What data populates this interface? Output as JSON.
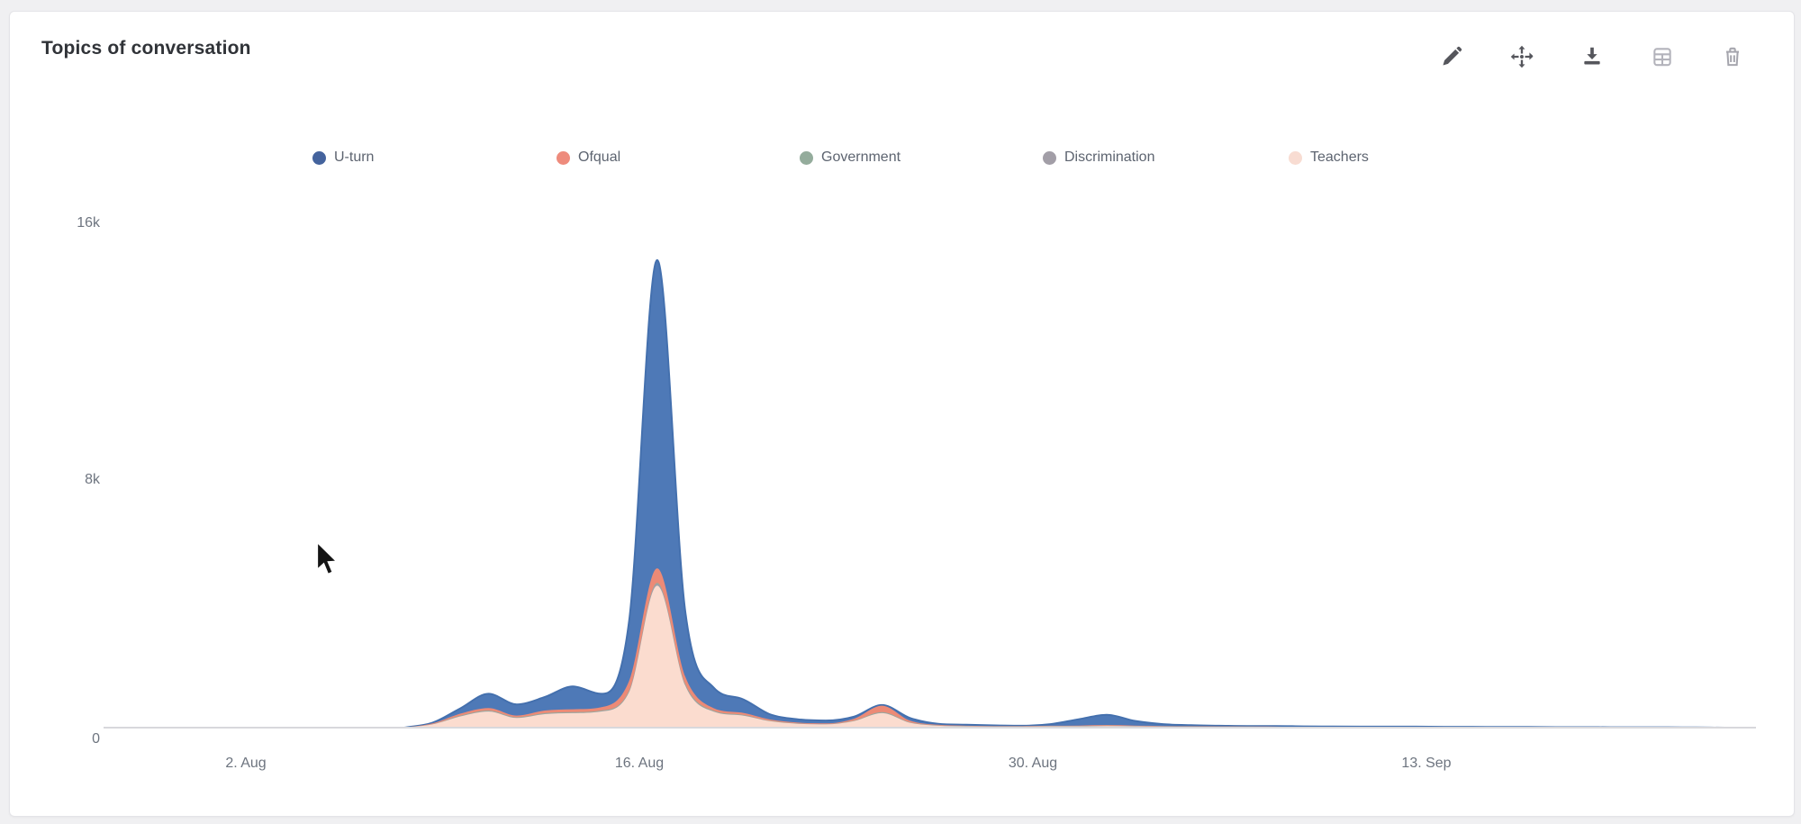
{
  "card": {
    "title": "Topics of conversation"
  },
  "toolbar": {
    "icons": [
      "edit",
      "move",
      "download",
      "data-table",
      "delete"
    ]
  },
  "chart_data": {
    "type": "area",
    "stacked": true,
    "title": "Topics of conversation",
    "grid": false,
    "legend_position": "top",
    "ylim": [
      0,
      16000
    ],
    "y_ticks": [
      "16k",
      "8k",
      "0"
    ],
    "x_ticks": [
      "2. Aug",
      "16. Aug",
      "30. Aug",
      "13. Sep"
    ],
    "x": [
      "8 Aug",
      "9 Aug",
      "10 Aug",
      "11 Aug",
      "12 Aug",
      "13 Aug",
      "14 Aug",
      "15 Aug",
      "16 Aug",
      "17 Aug",
      "18 Aug",
      "19 Aug",
      "20 Aug",
      "21 Aug",
      "22 Aug",
      "23 Aug",
      "24 Aug",
      "25 Aug",
      "26 Aug",
      "27 Aug",
      "28 Aug",
      "29 Aug",
      "30 Aug",
      "31 Aug",
      "1 Sep",
      "2 Sep",
      "3 Sep",
      "4 Sep",
      "5 Sep",
      "6 Sep",
      "7 Sep",
      "8 Sep",
      "9 Sep",
      "10 Sep",
      "11 Sep",
      "12 Sep",
      "13 Sep",
      "14 Sep",
      "15 Sep",
      "16 Sep",
      "17 Sep",
      "18 Sep",
      "19 Sep",
      "20 Sep",
      "21 Sep",
      "22 Sep",
      "23 Sep",
      "24 Sep"
    ],
    "series": [
      {
        "name": "U-turn",
        "color": "#4e79b7",
        "legend_dot": "#44639d",
        "values": [
          0,
          20,
          165,
          440,
          345,
          420,
          710,
          420,
          1850,
          9560,
          2020,
          640,
          435,
          165,
          105,
          90,
          65,
          20,
          85,
          30,
          30,
          20,
          10,
          50,
          195,
          315,
          145,
          60,
          30,
          20,
          15,
          20,
          20,
          20,
          15,
          15,
          15,
          10,
          10,
          5,
          10,
          5,
          10,
          5,
          5,
          5,
          0,
          0
        ]
      },
      {
        "name": "Ofqual",
        "color": "#ec8a76",
        "legend_dot": "#ee8b7c",
        "values": [
          0,
          20,
          60,
          80,
          50,
          80,
          90,
          100,
          300,
          450,
          220,
          80,
          60,
          40,
          25,
          20,
          60,
          200,
          50,
          20,
          10,
          10,
          10,
          10,
          15,
          20,
          15,
          10,
          10,
          10,
          5,
          5,
          5,
          5,
          5,
          5,
          5,
          5,
          5,
          5,
          5,
          5,
          0,
          0,
          0,
          0,
          0,
          0
        ]
      },
      {
        "name": "Government",
        "color": "#94ac9c",
        "legend_dot": "#94ac9c",
        "values": [
          0,
          5,
          15,
          20,
          15,
          20,
          20,
          20,
          30,
          30,
          30,
          20,
          15,
          10,
          5,
          5,
          10,
          20,
          10,
          5,
          5,
          5,
          5,
          5,
          5,
          10,
          5,
          5,
          5,
          5,
          5,
          5,
          0,
          0,
          0,
          0,
          0,
          0,
          0,
          0,
          0,
          0,
          0,
          0,
          0,
          0,
          0,
          0
        ]
      },
      {
        "name": "Discrimination",
        "color": "#a29ea7",
        "legend_dot": "#a29ea7",
        "values": [
          0,
          5,
          10,
          10,
          10,
          10,
          10,
          10,
          20,
          60,
          30,
          10,
          10,
          5,
          5,
          5,
          5,
          10,
          5,
          5,
          5,
          5,
          5,
          5,
          5,
          5,
          5,
          5,
          5,
          5,
          5,
          5,
          0,
          0,
          0,
          0,
          0,
          0,
          0,
          0,
          0,
          0,
          0,
          0,
          0,
          0,
          0,
          0
        ]
      },
      {
        "name": "Teachers",
        "color": "#fbdccf",
        "legend_dot": "#f8dcd2",
        "values": [
          0,
          100,
          350,
          500,
          300,
          420,
          450,
          500,
          1100,
          4400,
          1300,
          500,
          380,
          200,
          120,
          100,
          200,
          450,
          150,
          60,
          40,
          30,
          30,
          40,
          40,
          50,
          40,
          30,
          25,
          20,
          20,
          15,
          15,
          10,
          10,
          10,
          10,
          10,
          10,
          10,
          5,
          5,
          5,
          5,
          5,
          5,
          5,
          0
        ]
      }
    ],
    "stack_order": [
      "Teachers",
      "Discrimination",
      "Government",
      "Ofqual",
      "U-turn"
    ]
  },
  "cursor": {
    "visible": true,
    "shape": "arrow"
  }
}
